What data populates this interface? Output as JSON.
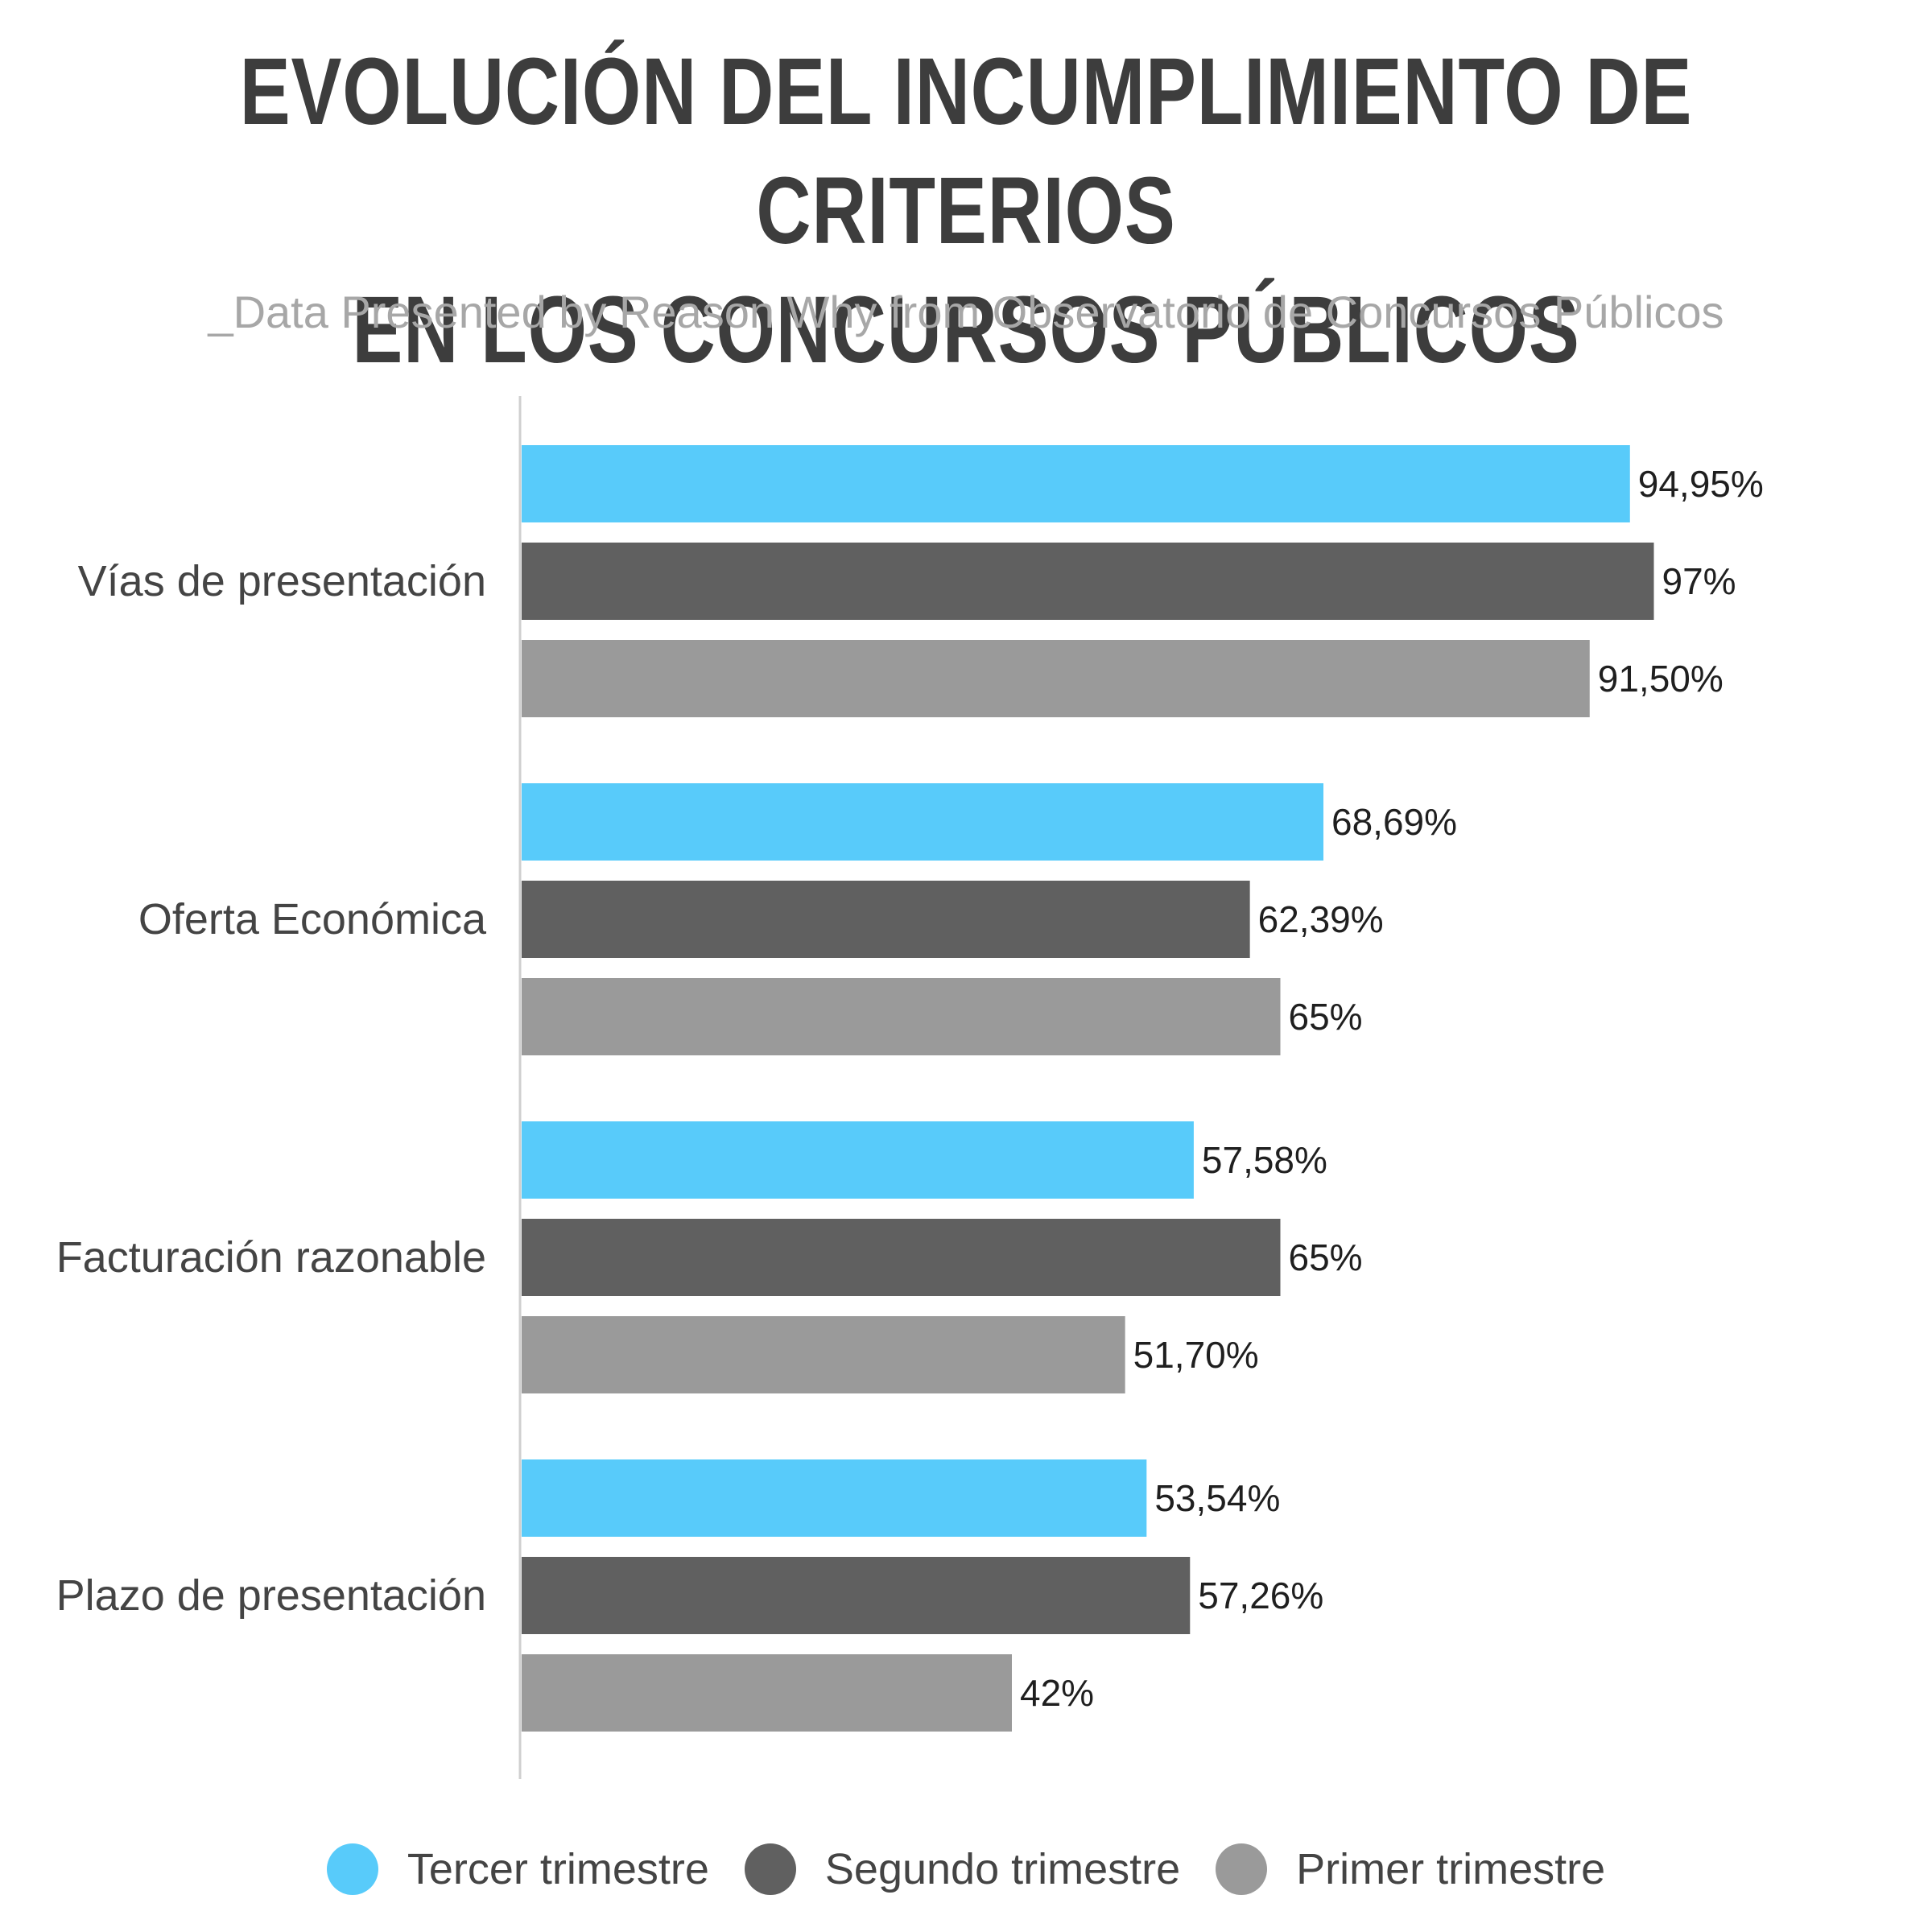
{
  "header": {
    "title_line1": "EVOLUCIÓN DEL INCUMPLIMIENTO DE CRITERIOS",
    "title_line2": "EN LOS CONCURSOS PÚBLICOS",
    "subtitle": "_Data Presented by Reason Why from Observatorio de Concursos Públicos"
  },
  "chart_data": {
    "type": "bar",
    "orientation": "horizontal",
    "title": "EVOLUCIÓN DEL INCUMPLIMIENTO DE CRITERIOS EN LOS CONCURSOS PÚBLICOS",
    "subtitle": "_Data Presented by Reason Why from Observatorio de Concursos Públicos",
    "categories": [
      "Vías de presentación",
      "Oferta Económica",
      "Facturación razonable",
      "Plazo de presentación"
    ],
    "series": [
      {
        "name": "Tercer trimestre",
        "color": "#58cbfa",
        "values": [
          94.95,
          68.69,
          57.58,
          53.54
        ],
        "labels": [
          "94,95%",
          "68,69%",
          "57,58%",
          "53,54%"
        ]
      },
      {
        "name": "Segundo trimestre",
        "color": "#606060",
        "values": [
          97,
          62.39,
          65,
          57.26
        ],
        "labels": [
          "97%",
          "62,39%",
          "65%",
          "57,26%"
        ]
      },
      {
        "name": "Primer trimestre",
        "color": "#9a9a9a",
        "values": [
          91.5,
          65,
          51.7,
          42
        ],
        "labels": [
          "91,50%",
          "65%",
          "51,70%",
          "42%"
        ]
      }
    ],
    "xlim": [
      0,
      100
    ],
    "grid": false,
    "legend_position": "bottom"
  },
  "legend": {
    "items": [
      {
        "label": "Tercer trimestre",
        "color": "#58cbfa"
      },
      {
        "label": "Segundo trimestre",
        "color": "#606060"
      },
      {
        "label": "Primer trimestre",
        "color": "#9a9a9a"
      }
    ]
  }
}
